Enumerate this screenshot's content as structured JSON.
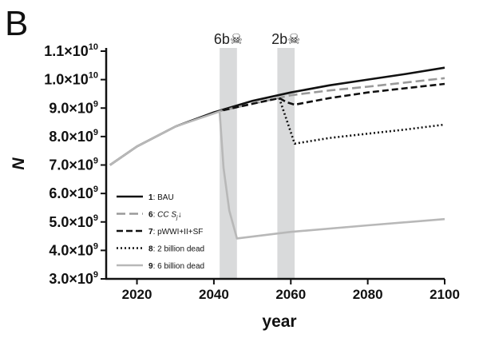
{
  "panel_label": "B",
  "chart_data": {
    "type": "line",
    "xlabel": "year",
    "ylabel": "N",
    "xlim": [
      2012,
      2100
    ],
    "ylim": [
      3000000000.0,
      11000000000.0
    ],
    "x_ticks": [
      "2020",
      "2040",
      "2060",
      "2080",
      "2100"
    ],
    "x_tick_values": [
      2020,
      2040,
      2060,
      2080,
      2100
    ],
    "y_ticks": [
      {
        "value": 3000000000.0,
        "mantissa": "3.0×10",
        "exp": "9"
      },
      {
        "value": 4000000000.0,
        "mantissa": "4.0×10",
        "exp": "9"
      },
      {
        "value": 5000000000.0,
        "mantissa": "5.0×10",
        "exp": "9"
      },
      {
        "value": 6000000000.0,
        "mantissa": "6.0×10",
        "exp": "9"
      },
      {
        "value": 7000000000.0,
        "mantissa": "7.0×10",
        "exp": "9"
      },
      {
        "value": 8000000000.0,
        "mantissa": "8.0×10",
        "exp": "9"
      },
      {
        "value": 9000000000.0,
        "mantissa": "9.0×10",
        "exp": "9"
      },
      {
        "value": 10000000000.0,
        "mantissa": "1.0×10",
        "exp": "10"
      },
      {
        "value": 11000000000.0,
        "mantissa": "1.1×10",
        "exp": "10"
      }
    ],
    "shaded_bands": [
      {
        "x_start": 2041.5,
        "x_end": 2046,
        "label": "6b☠"
      },
      {
        "x_start": 2056.5,
        "x_end": 2061,
        "label": "2b☠"
      }
    ],
    "series": [
      {
        "id": "1",
        "name": "BAU",
        "color": "#111111",
        "dash": "solid",
        "points": [
          [
            2013,
            7000000000.0
          ],
          [
            2020,
            7650000000.0
          ],
          [
            2030,
            8350000000.0
          ],
          [
            2040,
            8850000000.0
          ],
          [
            2050,
            9250000000.0
          ],
          [
            2060,
            9550000000.0
          ],
          [
            2070,
            9800000000.0
          ],
          [
            2080,
            10000000000.0
          ],
          [
            2090,
            10200000000.0
          ],
          [
            2100,
            10420000000.0
          ]
        ]
      },
      {
        "id": "6",
        "name": "CC S",
        "name_sub": "j",
        "name_suffix": "↓",
        "color": "#9a9a9a",
        "dash": "long",
        "points": [
          [
            2040,
            8850000000.0
          ],
          [
            2050,
            9150000000.0
          ],
          [
            2060,
            9450000000.0
          ],
          [
            2070,
            9620000000.0
          ],
          [
            2080,
            9750000000.0
          ],
          [
            2090,
            9900000000.0
          ],
          [
            2100,
            10050000000.0
          ]
        ]
      },
      {
        "id": "7",
        "name": "pWWI+II+SF",
        "color": "#111111",
        "dash": "dash",
        "points": [
          [
            2040,
            8850000000.0
          ],
          [
            2050,
            9150000000.0
          ],
          [
            2057,
            9350000000.0
          ],
          [
            2059,
            9200000000.0
          ],
          [
            2061,
            9120000000.0
          ],
          [
            2070,
            9350000000.0
          ],
          [
            2080,
            9550000000.0
          ],
          [
            2090,
            9700000000.0
          ],
          [
            2100,
            9850000000.0
          ]
        ]
      },
      {
        "id": "8",
        "name": "2 billion dead",
        "color": "#111111",
        "dash": "dot",
        "points": [
          [
            2057,
            9350000000.0
          ],
          [
            2061,
            7750000000.0
          ],
          [
            2070,
            7950000000.0
          ],
          [
            2080,
            8100000000.0
          ],
          [
            2090,
            8250000000.0
          ],
          [
            2100,
            8420000000.0
          ]
        ]
      },
      {
        "id": "9",
        "name": "6 billion dead",
        "color": "#b8b8b8",
        "dash": "solid",
        "points": [
          [
            2013,
            7000000000.0
          ],
          [
            2020,
            7650000000.0
          ],
          [
            2030,
            8350000000.0
          ],
          [
            2041.5,
            8880000000.0
          ],
          [
            2042.5,
            6900000000.0
          ],
          [
            2044,
            5400000000.0
          ],
          [
            2046,
            4420000000.0
          ],
          [
            2060,
            4650000000.0
          ],
          [
            2080,
            4880000000.0
          ],
          [
            2100,
            5100000000.0
          ]
        ]
      }
    ],
    "legend_placement": "bottom-left"
  }
}
